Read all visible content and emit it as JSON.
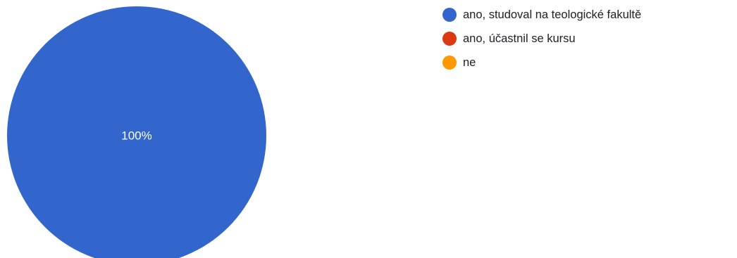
{
  "chart_data": {
    "type": "pie",
    "categories": [
      "ano, studoval na teologické fakultě",
      "ano, účastnil se kursu",
      "ne"
    ],
    "values": [
      100,
      0,
      0
    ],
    "colors": [
      "#3366cc",
      "#dc3912",
      "#ff9900"
    ],
    "data_labels": [
      "100%",
      "",
      ""
    ],
    "legend_position": "right"
  }
}
